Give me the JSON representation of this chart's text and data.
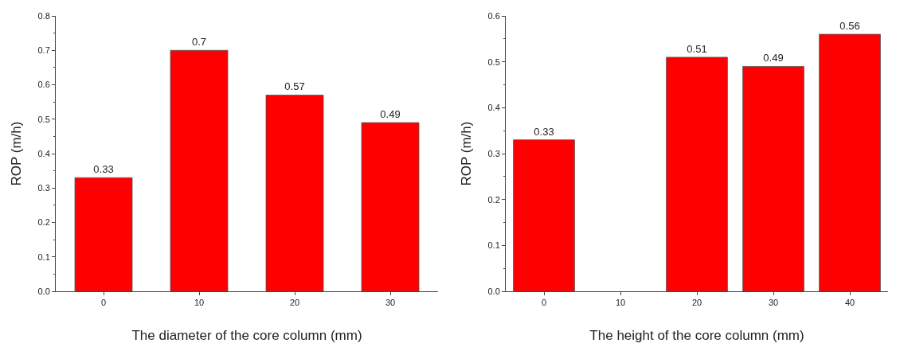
{
  "chart_data": [
    {
      "type": "bar",
      "xlabel": "The diameter of the core column (mm)",
      "ylabel": "ROP (m/h)",
      "categories": [
        "0",
        "10",
        "20",
        "30"
      ],
      "values": [
        0.33,
        0.7,
        0.57,
        0.49
      ],
      "color": "#ff0000",
      "ylim": [
        0,
        0.8
      ],
      "yticks": [
        {
          "value": 0,
          "label": "0.0"
        },
        0.1,
        0.2,
        0.3,
        0.4,
        0.5,
        0.6,
        0.7,
        0.8
      ],
      "data_labels": true
    },
    {
      "type": "bar",
      "xlabel": "The height of the core column (mm)",
      "ylabel": "ROP (m/h)",
      "categories": [
        "0",
        "10",
        "20",
        "30",
        "40"
      ],
      "values": [
        0.33,
        null,
        0.51,
        0.49,
        0.56
      ],
      "color": "#ff0000",
      "ylim": [
        0,
        0.6
      ],
      "yticks": [
        {
          "value": 0,
          "label": "0.0"
        },
        0.1,
        0.2,
        0.3,
        0.4,
        0.5,
        0.6
      ],
      "data_labels": true
    }
  ]
}
